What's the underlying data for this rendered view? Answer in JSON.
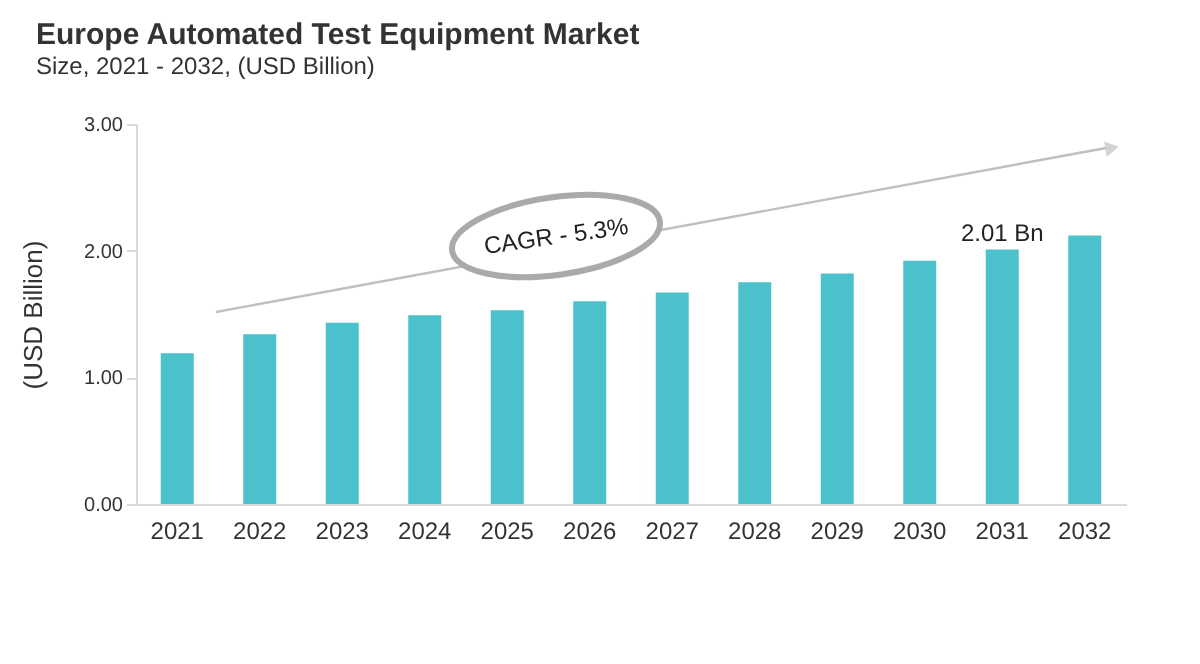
{
  "chart_data": {
    "type": "bar",
    "title": "Europe Automated Test Equipment Market",
    "subtitle": "Size, 2021 - 2032, (USD Billion)",
    "ylabel": "(USD Billion)",
    "categories": [
      "2021",
      "2022",
      "2023",
      "2024",
      "2025",
      "2026",
      "2027",
      "2028",
      "2029",
      "2030",
      "2031",
      "2032"
    ],
    "values": [
      1.19,
      1.34,
      1.43,
      1.49,
      1.53,
      1.6,
      1.67,
      1.75,
      1.82,
      1.92,
      2.01,
      2.12
    ],
    "color": "#4bc1cc",
    "ylim": [
      0,
      3
    ],
    "yticks": [
      {
        "value": 0,
        "label": "0.00"
      },
      {
        "value": 1,
        "label": "1.00"
      },
      {
        "value": 2,
        "label": "2.00"
      },
      {
        "value": 3,
        "label": "3.00"
      }
    ],
    "grid": false,
    "annotations": [
      "CAGR - 5.3%",
      {
        "text": "2.01 Bn",
        "x": "2031",
        "y": 2.01
      }
    ]
  }
}
